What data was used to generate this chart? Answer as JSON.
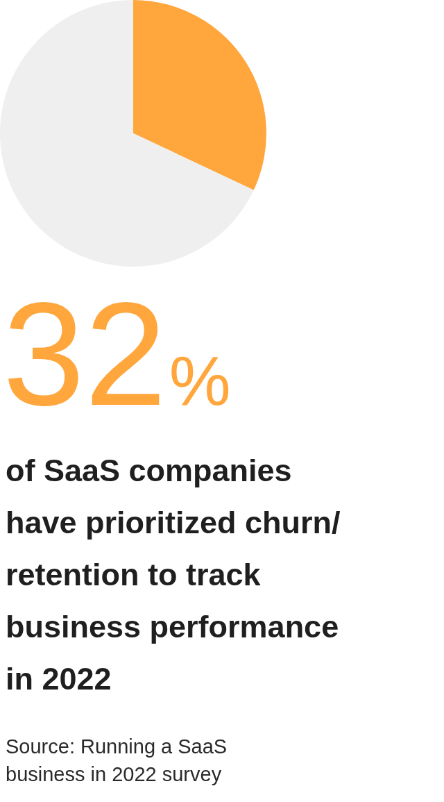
{
  "chart_data": {
    "type": "pie",
    "categories": [
      null,
      null
    ],
    "values": [
      32,
      68
    ],
    "colors": [
      "#ffa63d",
      "#efefef"
    ],
    "title": "32%",
    "subtitle": "of SaaS companies have prioritized churn/ retention to track business performance in 2022",
    "annotations": [
      "Source: Running a SaaS business in 2022 survey"
    ]
  }
}
